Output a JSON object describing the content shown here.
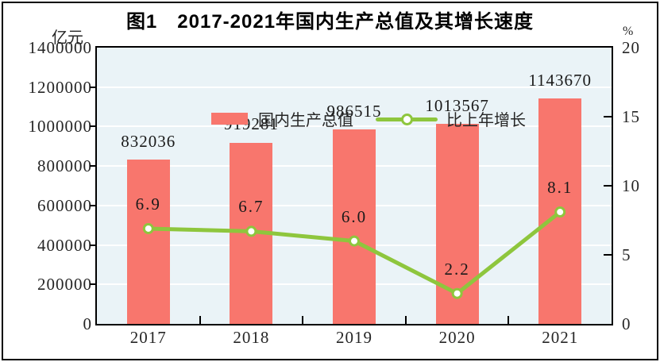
{
  "figure": {
    "title": "图1　2017-2021年国内生产总值及其增长速度",
    "left_axis_unit": "亿元",
    "right_axis_unit": "%"
  },
  "legend": {
    "bar_label": "国内生产总值",
    "line_label": "比上年增长"
  },
  "chart_data": {
    "type": "bar+line",
    "title": "图1　2017-2021年国内生产总值及其增长速度",
    "categories": [
      "2017",
      "2018",
      "2019",
      "2020",
      "2021"
    ],
    "series": [
      {
        "name": "国内生产总值",
        "type": "bar",
        "axis": "left",
        "unit": "亿元",
        "values": [
          832036,
          919281,
          986515,
          1013567,
          1143670
        ],
        "value_labels": [
          "832036",
          "919281",
          "986515",
          "1013567",
          "1143670"
        ],
        "color": "#f8766d"
      },
      {
        "name": "比上年增长",
        "type": "line",
        "axis": "right",
        "unit": "%",
        "values": [
          6.9,
          6.7,
          6.0,
          2.2,
          8.1
        ],
        "value_labels": [
          "6.9",
          "6.7",
          "6.0",
          "2.2",
          "8.1"
        ],
        "color": "#8ec63d",
        "marker": "circle-white-fill"
      }
    ],
    "left_axis": {
      "unit": "亿元",
      "min": 0,
      "max": 1400000,
      "step": 200000,
      "tick_labels": [
        "1400000",
        "1200000",
        "1000000",
        "800000",
        "600000",
        "400000",
        "200000",
        "0"
      ]
    },
    "right_axis": {
      "unit": "%",
      "min": 0,
      "max": 20,
      "step": 5,
      "tick_labels": [
        "20",
        "15",
        "10",
        "5",
        "0"
      ]
    },
    "grid": true,
    "plot_background": "#eaf3f7",
    "legend_position": "top-left-inside"
  }
}
